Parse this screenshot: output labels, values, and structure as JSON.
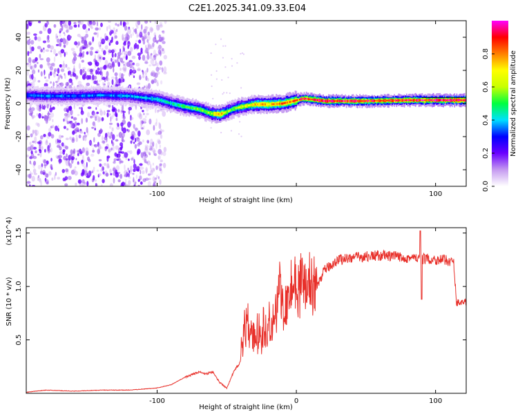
{
  "chart_data": [
    {
      "type": "heatmap",
      "title": "C2E1.2025.341.09.33.E04",
      "xlabel": "Height of straight line (km)",
      "ylabel": "Frequency (Hz)",
      "xlim": [
        -194,
        122
      ],
      "ylim": [
        -50,
        50
      ],
      "x_ticks": [
        -100,
        0,
        100
      ],
      "x_tick_labels": [
        "-100",
        "",
        "100"
      ],
      "y_ticks": [
        -40,
        -20,
        0,
        20,
        40
      ],
      "y_tick_labels": [
        "-40",
        "-20",
        "0",
        "20",
        "40"
      ],
      "colorbar": {
        "label": "Normalized spectral amplitude",
        "range": [
          0.0,
          1.0
        ],
        "ticks": [
          0.0,
          0.2,
          0.4,
          0.6,
          0.8
        ],
        "tick_labels": [
          "0.0",
          "0.2",
          "0.4",
          "0.6",
          "0.8"
        ],
        "colors": [
          "#ffffff",
          "#c59af0",
          "#6a00ff",
          "#0000ff",
          "#00e0ff",
          "#00ff40",
          "#c8ff00",
          "#ffff00",
          "#ff8000",
          "#ff0000",
          "#ff00ff"
        ]
      },
      "ridge": {
        "x": [
          -194,
          -180,
          -160,
          -140,
          -120,
          -100,
          -90,
          -80,
          -70,
          -62,
          -55,
          -50,
          -45,
          -40,
          -30,
          -20,
          -10,
          0,
          5,
          20,
          50,
          80,
          100,
          122
        ],
        "frequency": [
          5,
          4.5,
          4.5,
          5,
          4.5,
          2.5,
          0,
          -2,
          -3.5,
          -6,
          -6.5,
          -5,
          -3,
          -2,
          -0.5,
          -0.5,
          0,
          2,
          3,
          1.5,
          1.5,
          2,
          2,
          2
        ],
        "amplitude": [
          0.35,
          0.35,
          0.35,
          0.35,
          0.38,
          0.42,
          0.45,
          0.5,
          0.55,
          0.6,
          0.75,
          0.6,
          0.55,
          0.6,
          0.72,
          0.75,
          0.8,
          0.85,
          0.9,
          0.95,
          0.9,
          0.9,
          0.95,
          1.0
        ]
      }
    },
    {
      "type": "line",
      "xlabel": "Height of straight line (km)",
      "ylabel": "SNR (10 * v/v)",
      "y_multiplier": "(x10^4)",
      "xlim": [
        -194,
        122
      ],
      "ylim": [
        0,
        1.55
      ],
      "x_ticks": [
        -100,
        0,
        100
      ],
      "x_tick_labels": [
        "-100",
        "0",
        "100"
      ],
      "y_ticks": [
        0.5,
        1.0,
        1.5
      ],
      "y_tick_labels": [
        "0.5",
        "1.0",
        "1.5"
      ],
      "series": [
        {
          "name": "SNR",
          "color": "#e8302a",
          "x": [
            -194,
            -180,
            -160,
            -140,
            -120,
            -100,
            -90,
            -80,
            -70,
            -65,
            -60,
            -55,
            -50,
            -45,
            -40,
            -38,
            -35,
            -30,
            -25,
            -20,
            -15,
            -12,
            -10,
            -5,
            0,
            5,
            10,
            15,
            20,
            25,
            30,
            40,
            50,
            60,
            70,
            80,
            90,
            100,
            105,
            110,
            113,
            115,
            122
          ],
          "values": [
            0.01,
            0.03,
            0.02,
            0.03,
            0.03,
            0.05,
            0.08,
            0.15,
            0.2,
            0.18,
            0.2,
            0.1,
            0.05,
            0.2,
            0.3,
            0.6,
            0.65,
            0.5,
            0.6,
            0.65,
            0.7,
            1.05,
            0.75,
            0.95,
            1.05,
            1.0,
            0.95,
            1.0,
            1.15,
            1.2,
            1.25,
            1.27,
            1.28,
            1.29,
            1.28,
            1.27,
            1.26,
            1.25,
            1.25,
            1.24,
            1.22,
            0.85,
            0.85
          ]
        }
      ]
    }
  ]
}
